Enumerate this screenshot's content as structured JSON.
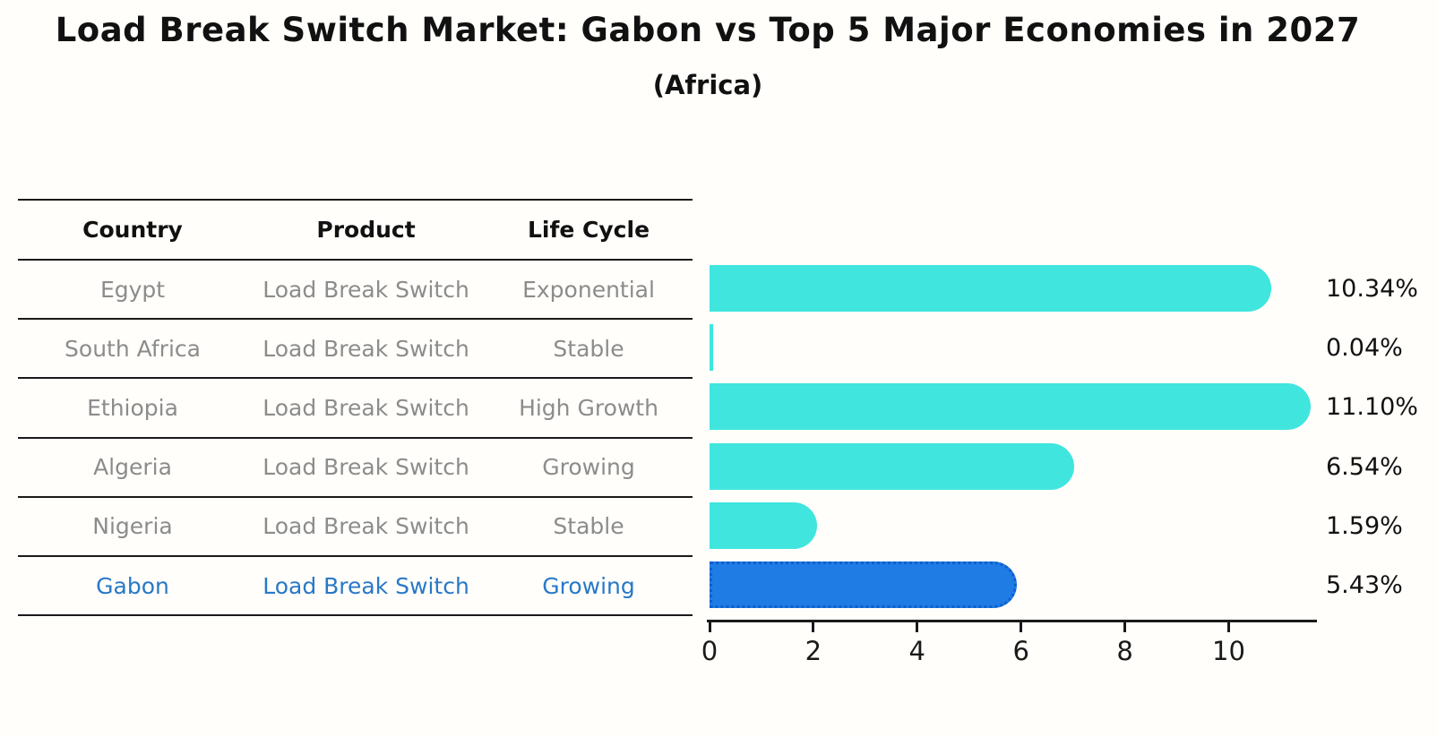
{
  "title": "Load Break Switch Market: Gabon vs Top 5 Major Economies in 2027",
  "subtitle": "(Africa)",
  "table": {
    "headers": [
      "Country",
      "Product",
      "Life Cycle"
    ],
    "rows": [
      {
        "country": "Egypt",
        "product": "Load Break Switch",
        "life_cycle": "Exponential",
        "highlight": false
      },
      {
        "country": "South Africa",
        "product": "Load Break Switch",
        "life_cycle": "Stable",
        "highlight": false
      },
      {
        "country": "Ethiopia",
        "product": "Load Break Switch",
        "life_cycle": "High Growth",
        "highlight": false
      },
      {
        "country": "Algeria",
        "product": "Load Break Switch",
        "life_cycle": "Growing",
        "highlight": false
      },
      {
        "country": "Nigeria",
        "product": "Load Break Switch",
        "life_cycle": "Stable",
        "highlight": true
      }
    ]
  },
  "gabon_row": {
    "country": "Gabon",
    "product": "Load Break Switch",
    "life_cycle": "Growing"
  },
  "chart_data": {
    "type": "bar",
    "orientation": "horizontal",
    "title": "Load Break Switch Market: Gabon vs Top 5 Major Economies in 2027",
    "subtitle": "(Africa)",
    "categories": [
      "Egypt",
      "South Africa",
      "Ethiopia",
      "Algeria",
      "Nigeria",
      "Gabon"
    ],
    "values": [
      10.34,
      0.04,
      11.1,
      6.54,
      1.59,
      5.43
    ],
    "value_labels": [
      "10.34%",
      "0.04%",
      "11.10%",
      "6.54%",
      "1.59%",
      "5.43%"
    ],
    "highlight_index": 5,
    "x_ticks": [
      0,
      2,
      4,
      6,
      8,
      10
    ],
    "xlim": [
      0,
      11.7
    ],
    "grid": false,
    "legend": false,
    "colors": {
      "bar_default": "#40e5de",
      "bar_highlight": "#1e7ce4",
      "bar_highlight_border": "#0d5fce",
      "highlight_text": "#2878c8",
      "table_text": "#8c8c8c",
      "axis_text": "#1a1a1a"
    }
  }
}
